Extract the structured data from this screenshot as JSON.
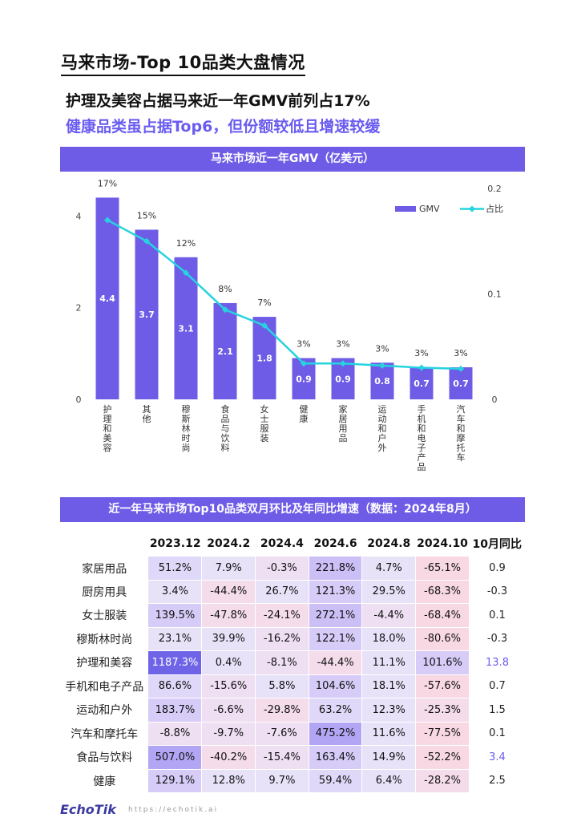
{
  "page_title": "马来市场-Top 10品类大盘情况",
  "subtitle1": "护理及美容占据马来近一年GMV前列占17%",
  "subtitle2": "健康品类虽占据Top6，但份额较低且增速较缓",
  "chart_banner": "马来市场近一年GMV（亿美元）",
  "table_banner": "近一年马来市场Top10品类双月环比及年同比增速（数据：2024年8月）",
  "colors": {
    "bar": "#6e5ce6",
    "line": "#26d3e0",
    "banner": "#6e5ce6",
    "subtitle2": "#6a5cf0",
    "highlight": "#6a5cf0"
  },
  "chart_data": {
    "type": "bar",
    "categories": [
      "护理和美容",
      "其他",
      "穆斯林时尚",
      "食品与饮料",
      "女士服装",
      "健康",
      "家居用品",
      "运动和户外",
      "手机和电子产品",
      "汽车和摩托车"
    ],
    "series": [
      {
        "name": "GMV",
        "type": "bar",
        "values": [
          4.4,
          3.7,
          3.1,
          2.1,
          1.8,
          0.9,
          0.9,
          0.8,
          0.7,
          0.7
        ]
      },
      {
        "name": "占比",
        "type": "line",
        "values": [
          0.17,
          0.15,
          0.12,
          0.085,
          0.07,
          0.034,
          0.034,
          0.032,
          0.03,
          0.029
        ],
        "labels": [
          "17%",
          "15%",
          "12%",
          "8%",
          "7%",
          "3%",
          "3%",
          "3%",
          "3%",
          "3%"
        ]
      }
    ],
    "bar_labels": [
      "4.4",
      "3.7",
      "3.1",
      "2.1",
      "1.8",
      "0.9",
      "0.9",
      "0.8",
      "0.7",
      "0.7"
    ],
    "ylim": [
      0,
      4.6
    ],
    "y_ticks": [
      "0",
      "2",
      "4"
    ],
    "y2lim": [
      0,
      0.2
    ],
    "y2_ticks": [
      "0",
      "0.1",
      "0.2"
    ],
    "legend": [
      "GMV",
      "占比"
    ],
    "legend_position": "top-right"
  },
  "table": {
    "headers": [
      "",
      "2023.12",
      "2024.2",
      "2024.4",
      "2024.6",
      "2024.8",
      "2024.10",
      "10月同比"
    ],
    "rows": [
      {
        "category": "家居用品",
        "values": [
          "51.2%",
          "7.9%",
          "-0.3%",
          "221.8%",
          "4.7%",
          "-65.1%"
        ],
        "yoy": "0.9"
      },
      {
        "category": "厨房用具",
        "values": [
          "3.4%",
          "-44.4%",
          "26.7%",
          "121.3%",
          "29.5%",
          "-68.3%"
        ],
        "yoy": "-0.3"
      },
      {
        "category": "女士服装",
        "values": [
          "139.5%",
          "-47.8%",
          "-24.1%",
          "272.1%",
          "-4.4%",
          "-68.4%"
        ],
        "yoy": "0.1"
      },
      {
        "category": "穆斯林时尚",
        "values": [
          "23.1%",
          "39.9%",
          "-16.2%",
          "122.1%",
          "18.0%",
          "-80.6%"
        ],
        "yoy": "-0.3"
      },
      {
        "category": "护理和美容",
        "values": [
          "1187.3%",
          "0.4%",
          "-8.1%",
          "-44.4%",
          "11.1%",
          "101.6%"
        ],
        "yoy": "13.8"
      },
      {
        "category": "手机和电子产品",
        "values": [
          "86.6%",
          "-15.6%",
          "5.8%",
          "104.6%",
          "18.1%",
          "-57.6%"
        ],
        "yoy": "0.7"
      },
      {
        "category": "运动和户外",
        "values": [
          "183.7%",
          "-6.6%",
          "-29.8%",
          "63.2%",
          "12.3%",
          "-25.3%"
        ],
        "yoy": "1.5"
      },
      {
        "category": "汽车和摩托车",
        "values": [
          "-8.8%",
          "-9.7%",
          "-7.6%",
          "475.2%",
          "11.6%",
          "-77.5%"
        ],
        "yoy": "0.1"
      },
      {
        "category": "食品与饮料",
        "values": [
          "507.0%",
          "-40.2%",
          "-15.4%",
          "163.4%",
          "14.9%",
          "-52.2%"
        ],
        "yoy": "3.4"
      },
      {
        "category": "健康",
        "values": [
          "129.1%",
          "12.8%",
          "9.7%",
          "59.4%",
          "6.4%",
          "-28.2%"
        ],
        "yoy": "2.5"
      }
    ]
  },
  "footer": {
    "logo": "EchoTik",
    "url": "https://echotik.ai"
  }
}
